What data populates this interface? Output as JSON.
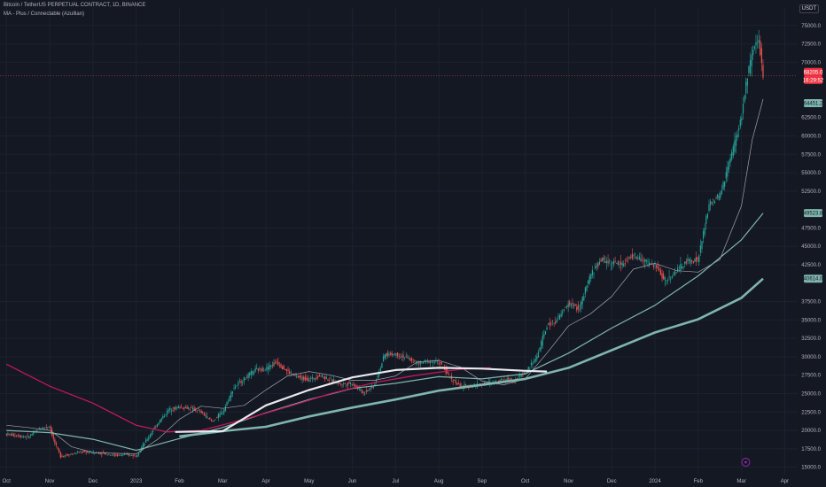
{
  "header": {
    "symbol_line": "Bitcoin / TetherUS PERPETUAL CONTRACT, 1D, BINANCE",
    "indicator_line": "MA - Plus / Connectable (Azullian)",
    "currency": "USDT"
  },
  "colors": {
    "background": "#141823",
    "grid": "#1c2130",
    "up": "#26a69a",
    "down": "#ef5350",
    "ma_fast": "#a0a4ad",
    "ma_mid": "#7fb5ac",
    "ma_slow": "#7fb5ac",
    "ma_red": "#c2185b",
    "ma_white": "#e8eaed",
    "price_line": "#ef5350"
  },
  "price_tags": [
    {
      "label": "68205.0",
      "value": 68205,
      "color": "#f23645",
      "text_color": "#ffffff"
    },
    {
      "label": "16:29:52",
      "value": 67340,
      "color": "#f23645",
      "text_color": "#ffffff"
    },
    {
      "label": "64451.2",
      "value": 64451.2,
      "color": "#7fb5ac",
      "text_color": "#141823"
    },
    {
      "label": "49523.8",
      "value": 49523.8,
      "color": "#7fb5ac",
      "text_color": "#141823"
    },
    {
      "label": "40614.0",
      "value": 40614,
      "color": "#7fb5ac",
      "text_color": "#141823"
    }
  ],
  "chart_data": {
    "type": "line",
    "title": "Bitcoin / TetherUS PERPETUAL CONTRACT, 1D, BINANCE",
    "y_ticks": [
      15000,
      17500,
      20000,
      22500,
      25000,
      27500,
      30000,
      32500,
      35000,
      37500,
      42500,
      45000,
      47500,
      52500,
      55000,
      57500,
      60000,
      62500,
      70000,
      72500,
      75000
    ],
    "y_tick_labels": [
      "15000.0",
      "17500.0",
      "20000.0",
      "22500.0",
      "25000.0",
      "27500.0",
      "30000.0",
      "32500.0",
      "35000.0",
      "37500.0",
      "42500.0",
      "45000.0",
      "47500.0",
      "52500.0",
      "55000.0",
      "57500.0",
      "60000.0",
      "62500.0",
      "70000.0",
      "72500.0",
      "75000.0"
    ],
    "ylim": [
      14000,
      77500
    ],
    "x_tick_labels": [
      "Oct",
      "Nov",
      "Dec",
      "2023",
      "Feb",
      "Mar",
      "Apr",
      "May",
      "Jun",
      "Jul",
      "Aug",
      "Sep",
      "Oct",
      "Nov",
      "Dec",
      "2024",
      "Feb",
      "Mar",
      "Apr"
    ],
    "x_tick_months": [
      0,
      1,
      2,
      3,
      4,
      5,
      6,
      7,
      8,
      9,
      10,
      11,
      12,
      13,
      14,
      15,
      16,
      17,
      18
    ],
    "xlim": [
      -0.15,
      18.3
    ],
    "current_price": 68205,
    "candles": {
      "months": [
        0,
        0.25,
        0.5,
        0.75,
        1.0,
        1.1,
        1.25,
        1.5,
        1.75,
        2.0,
        2.25,
        2.5,
        2.75,
        3.0,
        3.25,
        3.5,
        3.75,
        4.0,
        4.25,
        4.5,
        4.75,
        5.0,
        5.1,
        5.25,
        5.5,
        5.75,
        6.0,
        6.25,
        6.5,
        6.75,
        7.0,
        7.25,
        7.5,
        7.75,
        8.0,
        8.25,
        8.5,
        8.75,
        9.0,
        9.25,
        9.5,
        9.75,
        10.0,
        10.25,
        10.5,
        10.75,
        11.0,
        11.25,
        11.5,
        11.75,
        12.0,
        12.25,
        12.5,
        12.75,
        13.0,
        13.25,
        13.5,
        13.75,
        14.0,
        14.25,
        14.5,
        14.75,
        15.0,
        15.25,
        15.5,
        15.75,
        16.0,
        16.25,
        16.5,
        16.75,
        17.0,
        17.1,
        17.25,
        17.4,
        17.5
      ],
      "close": [
        19500,
        19300,
        19100,
        20200,
        20600,
        18500,
        16500,
        16800,
        17100,
        17000,
        16900,
        16600,
        16700,
        16600,
        18800,
        21000,
        22800,
        23200,
        23000,
        22500,
        21200,
        22500,
        23800,
        25800,
        27000,
        28200,
        28400,
        29300,
        28000,
        27200,
        26900,
        27500,
        26800,
        26300,
        26400,
        25100,
        26100,
        30300,
        30400,
        29900,
        29100,
        29400,
        29300,
        27300,
        25900,
        26100,
        26300,
        26500,
        27000,
        26900,
        27900,
        29800,
        34200,
        35100,
        37300,
        36500,
        41000,
        43200,
        42800,
        42600,
        43800,
        43000,
        42400,
        40300,
        41700,
        43000,
        43200,
        50700,
        51800,
        57000,
        62500,
        67000,
        71000,
        73100,
        68205
      ],
      "body_type": [
        "close"
      ]
    },
    "series": [
      {
        "name": "",
        "style": "fast",
        "months": [
          0,
          0.5,
          1.0,
          1.2,
          1.5,
          2.0,
          2.5,
          3.0,
          3.5,
          4.0,
          4.5,
          5.0,
          5.5,
          6.0,
          6.5,
          7.0,
          7.5,
          8.0,
          8.5,
          9.0,
          9.5,
          10.0,
          10.5,
          11.0,
          11.5,
          12.0,
          12.5,
          13.0,
          13.5,
          14.0,
          14.5,
          15.0,
          15.5,
          16.0,
          16.5,
          17.0,
          17.25,
          17.5
        ],
        "values": [
          20700,
          20400,
          20000,
          19200,
          17800,
          17000,
          16900,
          16800,
          18800,
          21500,
          23300,
          23000,
          23400,
          25500,
          27400,
          28000,
          27500,
          26800,
          26800,
          27400,
          29300,
          29500,
          28600,
          26700,
          26200,
          27000,
          30500,
          34200,
          35800,
          38200,
          41900,
          42700,
          41700,
          41500,
          43200,
          50500,
          59500,
          65000
        ]
      },
      {
        "name": "",
        "style": "mid",
        "months": [
          0,
          1,
          2,
          3,
          4,
          5,
          6,
          7,
          8,
          9,
          10,
          11,
          12,
          13,
          14,
          15,
          16,
          17,
          17.5
        ],
        "values": [
          20000,
          19700,
          18800,
          17300,
          18900,
          20400,
          22400,
          24200,
          25700,
          26400,
          27300,
          27000,
          27700,
          30500,
          33900,
          37000,
          41000,
          45900,
          49500
        ]
      },
      {
        "name": "",
        "style": "slow",
        "months": [
          4,
          5,
          6,
          7,
          8,
          9,
          10,
          11,
          12,
          13,
          14,
          15,
          16,
          17,
          17.5
        ],
        "values": [
          19200,
          19900,
          20500,
          21900,
          23100,
          24200,
          25400,
          26200,
          27000,
          28500,
          30900,
          33300,
          35100,
          38000,
          40614
        ]
      },
      {
        "name": "",
        "style": "red",
        "months": [
          0,
          1,
          2,
          3,
          3.7,
          4.5,
          5.5,
          6.5,
          7.5,
          8.5,
          9.5,
          10.5,
          11.2
        ],
        "values": [
          29000,
          26000,
          23700,
          20700,
          19800,
          20000,
          21500,
          23200,
          25000,
          26500,
          27500,
          28300,
          28500
        ]
      },
      {
        "name": "",
        "style": "white",
        "months": [
          3.9,
          5.0,
          6.0,
          7.0,
          8.0,
          9.0,
          10.0,
          11.0,
          12.0,
          12.5
        ],
        "values": [
          19800,
          19900,
          23400,
          25500,
          27200,
          28200,
          28500,
          28400,
          28100,
          28000
        ]
      }
    ]
  }
}
